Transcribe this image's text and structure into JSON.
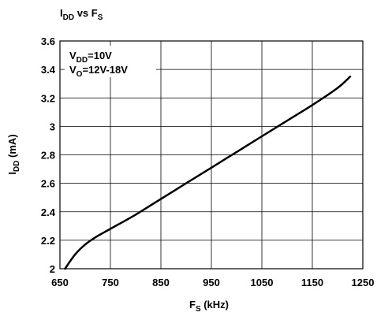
{
  "chart_data": {
    "type": "line",
    "title": {
      "main": "I",
      "main_sub": "DD",
      "mid": " vs F",
      "mid_sub": "S"
    },
    "xlabel": {
      "main": "F",
      "sub": "S",
      "rest": " (kHz)"
    },
    "ylabel": {
      "main": "I",
      "sub": "DD",
      "rest": " (mA)"
    },
    "xlim": [
      650,
      1250
    ],
    "ylim": [
      2,
      3.6
    ],
    "x_ticks": [
      "650",
      "750",
      "850",
      "950",
      "1050",
      "1150",
      "1250"
    ],
    "y_ticks": [
      "2",
      "2.2",
      "2.4",
      "2.6",
      "2.8",
      "3",
      "3.2",
      "3.4",
      "3.6"
    ],
    "grid": true,
    "annotations": [
      {
        "main": "V",
        "sub": "DD",
        "rest": "=10V"
      },
      {
        "main": "V",
        "sub": "O",
        "rest": "=12V-18V"
      }
    ],
    "series": [
      {
        "x": [
          660,
          680,
          700,
          720,
          750,
          800,
          850,
          900,
          950,
          1000,
          1050,
          1100,
          1150,
          1200,
          1225
        ],
        "y": [
          2.0,
          2.1,
          2.17,
          2.22,
          2.28,
          2.38,
          2.49,
          2.6,
          2.71,
          2.82,
          2.93,
          3.04,
          3.15,
          3.27,
          3.35
        ]
      }
    ]
  }
}
